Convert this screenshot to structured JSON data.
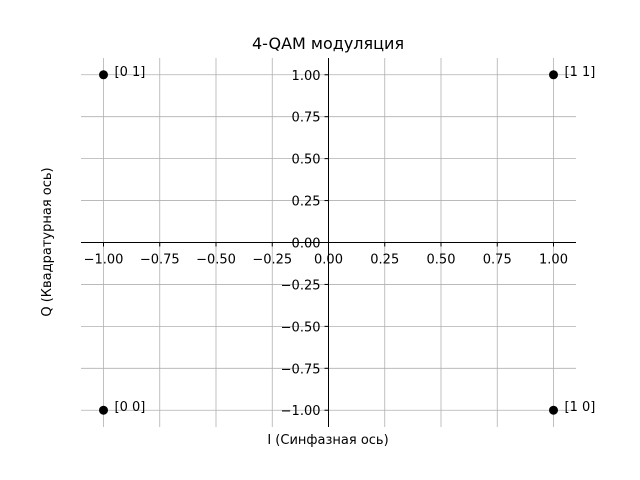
{
  "chart_data": {
    "type": "scatter",
    "title": "4-QAM модуляция",
    "xlabel": "I (Синфазная ось)",
    "ylabel": "Q (Квадратурная ось)",
    "xlim": [
      -1.1,
      1.1
    ],
    "ylim": [
      -1.1,
      1.1
    ],
    "grid": true,
    "x_ticks": [
      -1.0,
      -0.75,
      -0.5,
      -0.25,
      0.0,
      0.25,
      0.5,
      0.75,
      1.0
    ],
    "y_ticks": [
      -1.0,
      -0.75,
      -0.5,
      -0.25,
      0.0,
      0.25,
      0.5,
      0.75,
      1.0
    ],
    "x_tick_labels": [
      "−1.00",
      "−0.75",
      "−0.50",
      "−0.25",
      "0.00",
      "0.25",
      "0.50",
      "0.75",
      "1.00"
    ],
    "y_tick_labels": [
      "−1.00",
      "−0.75",
      "−0.50",
      "−0.25",
      "0.00",
      "0.25",
      "0.50",
      "0.75",
      "1.00"
    ],
    "points": [
      {
        "x": -1,
        "y": 1,
        "label": "[0 1]"
      },
      {
        "x": 1,
        "y": 1,
        "label": "[1 1]"
      },
      {
        "x": -1,
        "y": -1,
        "label": "[0 0]"
      },
      {
        "x": 1,
        "y": -1,
        "label": "[1 0]"
      }
    ],
    "colors": {
      "point": "#000000",
      "grid": "#b0b0b0",
      "axis": "#000000"
    }
  }
}
